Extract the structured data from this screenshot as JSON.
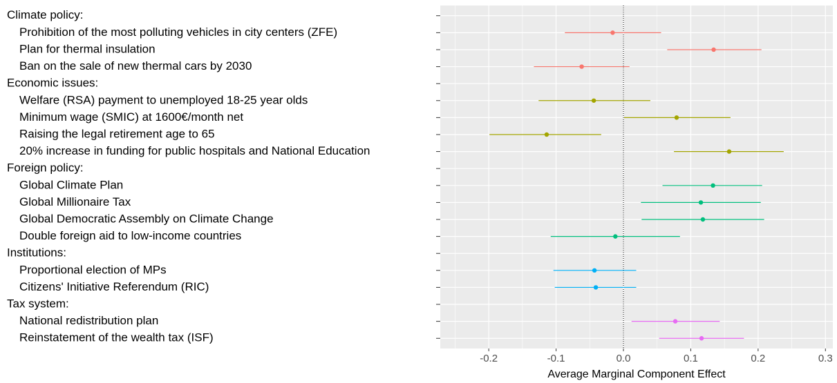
{
  "chart_data": {
    "type": "pointrange",
    "x_label": "Average Marginal Component Effect",
    "categories": [
      "Climate policy:",
      "Prohibition of the most polluting vehicles in city centers (ZFE)",
      "Plan for thermal insulation",
      "Ban on the sale of new thermal cars by 2030",
      "Economic issues:",
      "Welfare (RSA) payment to unemployed 18-25 year olds",
      "Minimum wage (SMIC) at 1600€/month net",
      "Raising the legal retirement age to 65",
      "20% increase in funding for public hospitals and National Education",
      "Foreign policy:",
      "Global Climate Plan",
      "Global Millionaire Tax",
      "Global Democratic Assembly on Climate Change",
      "Double foreign aid to low-income countries",
      "Institutions:",
      "Proportional election of MPs",
      "Citizens' Initiative Referendum (RIC)",
      "Tax system:",
      "National redistribution plan",
      "Reinstatement of the wealth tax (ISF)"
    ],
    "series": [
      {
        "color": "#F8766D",
        "values": [
          null,
          -0.016,
          0.134,
          -0.062,
          null,
          null,
          null,
          null,
          null,
          null,
          null,
          null,
          null,
          null,
          null,
          null,
          null,
          null,
          null,
          null
        ],
        "lower": [
          null,
          -0.087,
          0.065,
          -0.133,
          null,
          null,
          null,
          null,
          null,
          null,
          null,
          null,
          null,
          null,
          null,
          null,
          null,
          null,
          null,
          null
        ],
        "upper": [
          null,
          0.056,
          0.205,
          0.009,
          null,
          null,
          null,
          null,
          null,
          null,
          null,
          null,
          null,
          null,
          null,
          null,
          null,
          null,
          null,
          null
        ]
      },
      {
        "color": "#A3A500",
        "values": [
          null,
          null,
          null,
          null,
          null,
          -0.044,
          0.079,
          -0.114,
          0.157,
          null,
          null,
          null,
          null,
          null,
          null,
          null,
          null,
          null,
          null,
          null
        ],
        "lower": [
          null,
          null,
          null,
          null,
          null,
          -0.126,
          0.001,
          -0.199,
          0.075,
          null,
          null,
          null,
          null,
          null,
          null,
          null,
          null,
          null,
          null,
          null
        ],
        "upper": [
          null,
          null,
          null,
          null,
          null,
          0.04,
          0.159,
          -0.033,
          0.238,
          null,
          null,
          null,
          null,
          null,
          null,
          null,
          null,
          null,
          null,
          null
        ]
      },
      {
        "color": "#00BF7D",
        "values": [
          null,
          null,
          null,
          null,
          null,
          null,
          null,
          null,
          null,
          null,
          0.133,
          0.115,
          0.118,
          -0.012,
          null,
          null,
          null,
          null,
          null,
          null
        ],
        "lower": [
          null,
          null,
          null,
          null,
          null,
          null,
          null,
          null,
          null,
          null,
          0.058,
          0.026,
          0.027,
          -0.108,
          null,
          null,
          null,
          null,
          null,
          null
        ],
        "upper": [
          null,
          null,
          null,
          null,
          null,
          null,
          null,
          null,
          null,
          null,
          0.206,
          0.204,
          0.209,
          0.084,
          null,
          null,
          null,
          null,
          null,
          null
        ]
      },
      {
        "color": "#00B0F6",
        "values": [
          null,
          null,
          null,
          null,
          null,
          null,
          null,
          null,
          null,
          null,
          null,
          null,
          null,
          null,
          null,
          -0.043,
          -0.041,
          null,
          null,
          null
        ],
        "lower": [
          null,
          null,
          null,
          null,
          null,
          null,
          null,
          null,
          null,
          null,
          null,
          null,
          null,
          null,
          null,
          -0.104,
          -0.102,
          null,
          null,
          null
        ],
        "upper": [
          null,
          null,
          null,
          null,
          null,
          null,
          null,
          null,
          null,
          null,
          null,
          null,
          null,
          null,
          null,
          0.019,
          0.019,
          null,
          null,
          null
        ]
      },
      {
        "color": "#E76BF3",
        "values": [
          null,
          null,
          null,
          null,
          null,
          null,
          null,
          null,
          null,
          null,
          null,
          null,
          null,
          null,
          null,
          null,
          null,
          null,
          0.077,
          0.116
        ],
        "lower": [
          null,
          null,
          null,
          null,
          null,
          null,
          null,
          null,
          null,
          null,
          null,
          null,
          null,
          null,
          null,
          null,
          null,
          null,
          0.012,
          0.053
        ],
        "upper": [
          null,
          null,
          null,
          null,
          null,
          null,
          null,
          null,
          null,
          null,
          null,
          null,
          null,
          null,
          null,
          null,
          null,
          null,
          0.143,
          0.179
        ]
      }
    ],
    "xlim": [
      -0.272,
      0.311
    ],
    "xticks": [
      -0.2,
      -0.1,
      {
        "value": 0,
        "label": "0.0"
      },
      0.1,
      0.2,
      0.3
    ],
    "x_minor_ticks": [
      -0.25,
      -0.15,
      -0.05,
      0.05,
      0.15,
      0.25
    ],
    "vline": 0,
    "grid": true
  }
}
